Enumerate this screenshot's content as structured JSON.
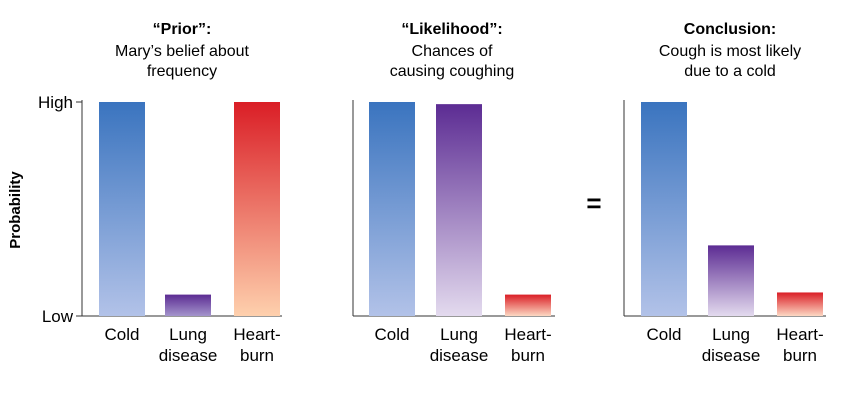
{
  "ylabel": "Probability",
  "equals_sign": "=",
  "chart_data": [
    {
      "type": "bar",
      "title": "“Prior”:",
      "subtitle": [
        "Mary’s belief about",
        "frequency"
      ],
      "ylabel": "Probability",
      "yticks": [
        "High",
        "Low"
      ],
      "ylim": [
        0,
        1
      ],
      "categories": [
        [
          "Cold"
        ],
        [
          "Lung",
          "disease"
        ],
        [
          "Heart-",
          "burn"
        ]
      ],
      "values": [
        1.0,
        0.1,
        1.0
      ],
      "colors": [
        [
          "#3a74bf",
          "#b2c2e8"
        ],
        [
          "#5c2c93",
          "#a494cc"
        ],
        [
          "#da1e26",
          "#fed0ad"
        ]
      ]
    },
    {
      "type": "bar",
      "title": "“Likelihood”:",
      "subtitle": [
        "Chances of",
        "causing coughing"
      ],
      "ylim": [
        0,
        1
      ],
      "categories": [
        [
          "Cold"
        ],
        [
          "Lung",
          "disease"
        ],
        [
          "Heart-",
          "burn"
        ]
      ],
      "values": [
        1.0,
        0.99,
        0.1
      ],
      "colors": [
        [
          "#3a74bf",
          "#b2c2e8"
        ],
        [
          "#5c2c93",
          "#e3daee"
        ],
        [
          "#da1e26",
          "#fcd8c3"
        ]
      ]
    },
    {
      "type": "bar",
      "title": "Conclusion:",
      "subtitle": [
        "Cough is most likely",
        "due to a cold"
      ],
      "ylim": [
        0,
        1
      ],
      "categories": [
        [
          "Cold"
        ],
        [
          "Lung",
          "disease"
        ],
        [
          "Heart-",
          "burn"
        ]
      ],
      "values": [
        1.0,
        0.33,
        0.11
      ],
      "colors": [
        [
          "#3a74bf",
          "#b2c2e8"
        ],
        [
          "#5c2c93",
          "#e3daee"
        ],
        [
          "#da1e26",
          "#fcd8c3"
        ]
      ]
    }
  ]
}
